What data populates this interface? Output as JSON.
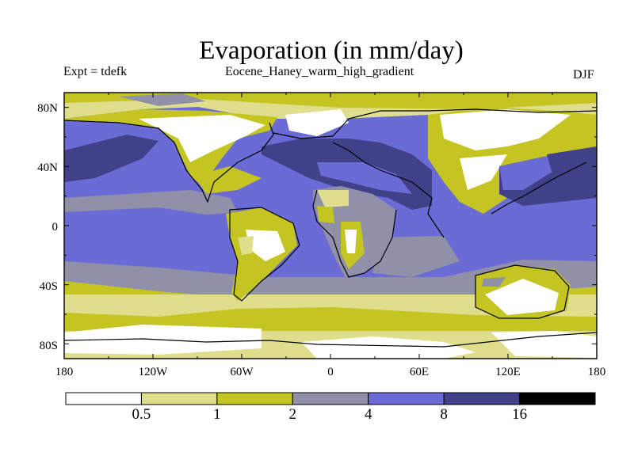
{
  "chart_data": {
    "type": "heatmap",
    "title": "Evaporation (in mm/day)",
    "left_label": "Expt = tdefk",
    "center_label": "Eocene_Haney_warm_high_gradient",
    "right_label": "DJF",
    "x_ticks": [
      "180",
      "120W",
      "60W",
      "0",
      "60E",
      "120E",
      "180"
    ],
    "y_ticks": [
      "80N",
      "40N",
      "0",
      "40S",
      "80S"
    ],
    "colorbar": {
      "levels": [
        "0.5",
        "1",
        "2",
        "4",
        "8",
        "16"
      ],
      "colors": [
        "#ffffff",
        "#dede8c",
        "#c4c423",
        "#9090a8",
        "#6b6bd6",
        "#414189",
        "#000000"
      ]
    }
  }
}
